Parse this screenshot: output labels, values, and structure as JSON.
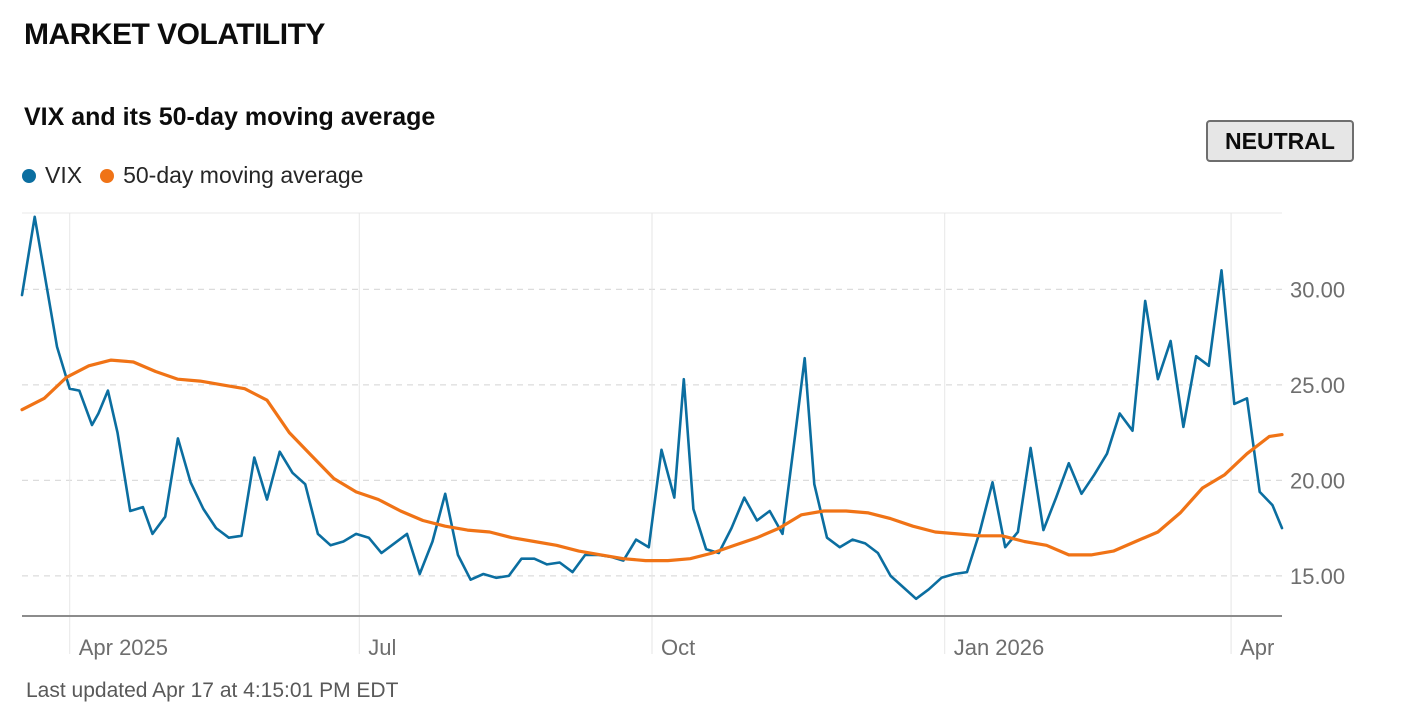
{
  "section_title": "MARKET VOLATILITY",
  "status_badge": "NEUTRAL",
  "last_updated": "Last updated Apr 17 at 4:15:01 PM EDT",
  "colors": {
    "vix": "#0b6ea0",
    "ma": "#f07316",
    "grid": "#dcdcdc",
    "axis": "#8c8c8c",
    "label": "#6e6e6e"
  },
  "chart_data": {
    "type": "line",
    "title": "VIX and its 50-day moving average",
    "xlabel": "",
    "ylabel": "",
    "x_domain": [
      "2025-03-17",
      "2026-04-17"
    ],
    "ylim": [
      12.9,
      34.0
    ],
    "x_ticks": [
      {
        "label": "Apr 2025",
        "date": "2025-04-01"
      },
      {
        "label": "Jul",
        "date": "2025-07-01"
      },
      {
        "label": "Oct",
        "date": "2025-10-01"
      },
      {
        "label": "Jan 2026",
        "date": "2026-01-01"
      },
      {
        "label": "Apr",
        "date": "2026-04-01"
      }
    ],
    "y_ticks": [
      {
        "value": 30,
        "label": "30.00"
      },
      {
        "value": 25,
        "label": "25.00"
      },
      {
        "value": 20,
        "label": "20.00"
      },
      {
        "value": 15,
        "label": "15.00"
      }
    ],
    "legend": [
      "VIX",
      "50-day moving average"
    ],
    "series": [
      {
        "name": "VIX",
        "x": [
          "2025-03-17",
          "2025-03-21",
          "2025-03-28",
          "2025-04-01",
          "2025-04-04",
          "2025-04-08",
          "2025-04-10",
          "2025-04-13",
          "2025-04-16",
          "2025-04-20",
          "2025-04-24",
          "2025-04-27",
          "2025-05-01",
          "2025-05-05",
          "2025-05-09",
          "2025-05-13",
          "2025-05-17",
          "2025-05-21",
          "2025-05-25",
          "2025-05-29",
          "2025-06-02",
          "2025-06-06",
          "2025-06-10",
          "2025-06-14",
          "2025-06-18",
          "2025-06-22",
          "2025-06-26",
          "2025-06-30",
          "2025-07-04",
          "2025-07-08",
          "2025-07-12",
          "2025-07-16",
          "2025-07-20",
          "2025-07-24",
          "2025-07-28",
          "2025-08-01",
          "2025-08-05",
          "2025-08-09",
          "2025-08-13",
          "2025-08-17",
          "2025-08-21",
          "2025-08-25",
          "2025-08-29",
          "2025-09-02",
          "2025-09-06",
          "2025-09-10",
          "2025-09-14",
          "2025-09-18",
          "2025-09-22",
          "2025-09-26",
          "2025-09-30",
          "2025-10-04",
          "2025-10-08",
          "2025-10-11",
          "2025-10-14",
          "2025-10-18",
          "2025-10-22",
          "2025-10-26",
          "2025-10-30",
          "2025-11-03",
          "2025-11-07",
          "2025-11-11",
          "2025-11-15",
          "2025-11-18",
          "2025-11-21",
          "2025-11-25",
          "2025-11-29",
          "2025-12-03",
          "2025-12-07",
          "2025-12-11",
          "2025-12-15",
          "2025-12-19",
          "2025-12-23",
          "2025-12-27",
          "2025-12-31",
          "2026-01-04",
          "2026-01-08",
          "2026-01-12",
          "2026-01-16",
          "2026-01-20",
          "2026-01-24",
          "2026-01-28",
          "2026-02-01",
          "2026-02-05",
          "2026-02-09",
          "2026-02-13",
          "2026-02-17",
          "2026-02-21",
          "2026-02-25",
          "2026-03-01",
          "2026-03-05",
          "2026-03-09",
          "2026-03-13",
          "2026-03-17",
          "2026-03-21",
          "2026-03-25",
          "2026-03-29",
          "2026-04-02",
          "2026-04-06",
          "2026-04-10",
          "2026-04-14",
          "2026-04-17"
        ],
        "values": [
          29.7,
          33.8,
          27.0,
          24.8,
          24.7,
          22.9,
          23.5,
          24.7,
          22.5,
          18.4,
          18.6,
          17.2,
          18.1,
          22.2,
          19.9,
          18.5,
          17.5,
          17.0,
          17.1,
          21.2,
          19.0,
          21.5,
          20.4,
          19.8,
          17.2,
          16.6,
          16.8,
          17.2,
          17.0,
          16.2,
          16.7,
          17.2,
          15.1,
          16.8,
          19.3,
          16.1,
          14.8,
          15.1,
          14.9,
          15.0,
          15.9,
          15.9,
          15.6,
          15.7,
          15.2,
          16.1,
          16.1,
          16.0,
          15.8,
          16.9,
          16.5,
          21.6,
          19.1,
          25.3,
          18.5,
          16.4,
          16.2,
          17.5,
          19.1,
          17.9,
          18.4,
          17.2,
          22.4,
          26.4,
          19.8,
          17.0,
          16.5,
          16.9,
          16.7,
          16.2,
          15.0,
          14.4,
          13.8,
          14.3,
          14.9,
          15.1,
          15.2,
          17.3,
          19.9,
          16.5,
          17.3,
          21.7,
          17.4,
          19.1,
          20.9,
          19.3,
          20.3,
          21.4,
          23.5,
          22.6,
          29.4,
          25.3,
          27.3,
          22.8,
          26.5,
          26.0,
          31.0,
          24.0,
          24.3,
          19.4,
          18.7,
          17.5
        ]
      },
      {
        "name": "50-day moving average",
        "x": [
          "2025-03-17",
          "2025-03-24",
          "2025-03-31",
          "2025-04-07",
          "2025-04-14",
          "2025-04-21",
          "2025-04-28",
          "2025-05-05",
          "2025-05-12",
          "2025-05-19",
          "2025-05-26",
          "2025-06-02",
          "2025-06-09",
          "2025-06-16",
          "2025-06-23",
          "2025-06-30",
          "2025-07-07",
          "2025-07-14",
          "2025-07-21",
          "2025-07-28",
          "2025-08-04",
          "2025-08-11",
          "2025-08-18",
          "2025-08-25",
          "2025-09-01",
          "2025-09-08",
          "2025-09-15",
          "2025-09-22",
          "2025-09-29",
          "2025-10-06",
          "2025-10-13",
          "2025-10-20",
          "2025-10-27",
          "2025-11-03",
          "2025-11-10",
          "2025-11-17",
          "2025-11-24",
          "2025-12-01",
          "2025-12-08",
          "2025-12-15",
          "2025-12-22",
          "2025-12-29",
          "2026-01-05",
          "2026-01-12",
          "2026-01-19",
          "2026-01-26",
          "2026-02-02",
          "2026-02-09",
          "2026-02-16",
          "2026-02-23",
          "2026-03-02",
          "2026-03-09",
          "2026-03-16",
          "2026-03-23",
          "2026-03-30",
          "2026-04-06",
          "2026-04-13",
          "2026-04-17"
        ],
        "values": [
          23.7,
          24.3,
          25.4,
          26.0,
          26.3,
          26.2,
          25.7,
          25.3,
          25.2,
          25.0,
          24.8,
          24.2,
          22.5,
          21.3,
          20.1,
          19.4,
          19.0,
          18.4,
          17.9,
          17.6,
          17.4,
          17.3,
          17.0,
          16.8,
          16.6,
          16.3,
          16.1,
          15.9,
          15.8,
          15.8,
          15.9,
          16.2,
          16.6,
          17.0,
          17.5,
          18.2,
          18.4,
          18.4,
          18.3,
          18.0,
          17.6,
          17.3,
          17.2,
          17.1,
          17.1,
          16.8,
          16.6,
          16.1,
          16.1,
          16.3,
          16.8,
          17.3,
          18.3,
          19.6,
          20.3,
          21.4,
          22.3,
          22.4
        ]
      }
    ]
  }
}
